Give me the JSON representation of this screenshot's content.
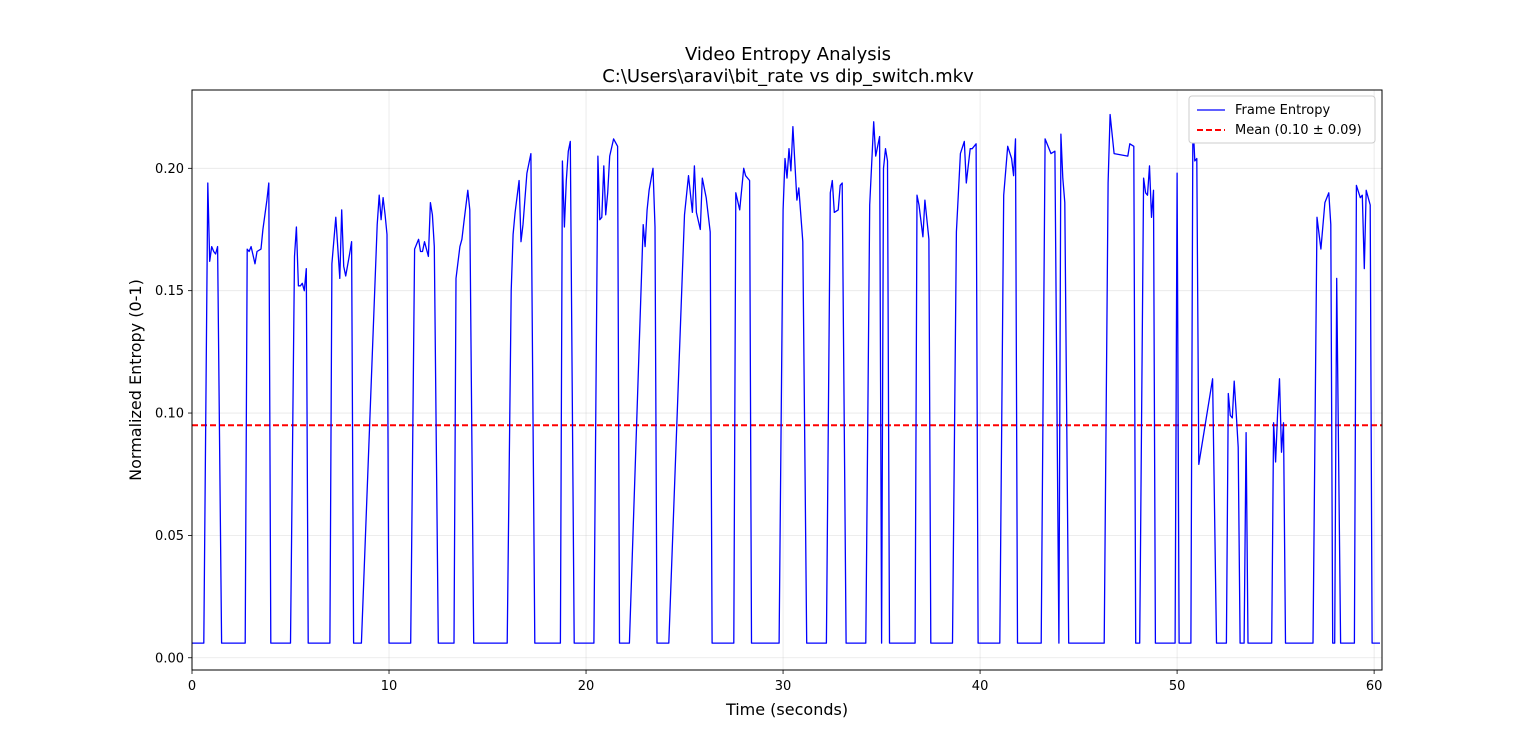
{
  "chart_data": {
    "type": "line",
    "title": "Video Entropy Analysis",
    "subtitle": "C:\\Users\\aravi\\bit_rate vs dip_switch.mkv",
    "xlabel": "Time (seconds)",
    "ylabel": "Normalized Entropy (0-1)",
    "xlim": [
      0,
      60.4
    ],
    "ylim": [
      -0.005,
      0.232
    ],
    "xticks": [
      0,
      10,
      20,
      30,
      40,
      50,
      60
    ],
    "xtick_labels": [
      "0",
      "10",
      "20",
      "30",
      "40",
      "50",
      "60"
    ],
    "yticks": [
      0.0,
      0.05,
      0.1,
      0.15,
      0.2
    ],
    "ytick_labels": [
      "0.00",
      "0.05",
      "0.10",
      "0.15",
      "0.20"
    ],
    "grid": true,
    "legend_position": "top-right",
    "mean_line": {
      "name": "Mean (0.10 ± 0.09)",
      "value": 0.095,
      "color": "#ff0000",
      "style": "dashed"
    },
    "series": [
      {
        "name": "Frame Entropy",
        "color": "#0000ff",
        "x": [
          0,
          0.6,
          0.8,
          0.9,
          1.0,
          1.1,
          1.2,
          1.3,
          1.5,
          1.6,
          2.7,
          2.8,
          2.9,
          3.0,
          3.2,
          3.3,
          3.5,
          3.6,
          3.8,
          3.9,
          4.0,
          4.1,
          5.0,
          5.2,
          5.3,
          5.4,
          5.5,
          5.6,
          5.7,
          5.8,
          5.9,
          6.0,
          6.2,
          7.0,
          7.1,
          7.3,
          7.5,
          7.6,
          7.7,
          7.8,
          8.0,
          8.1,
          8.2,
          8.3,
          8.5,
          8.6,
          9.4,
          9.5,
          9.6,
          9.7,
          9.8,
          9.9,
          10.0,
          10.2,
          10.3,
          11.1,
          11.3,
          11.5,
          11.6,
          11.7,
          11.8,
          12.0,
          12.1,
          12.2,
          12.3,
          12.5,
          12.6,
          13.1,
          13.3,
          13.4,
          13.6,
          13.7,
          13.8,
          14.0,
          14.1,
          14.3,
          14.4,
          14.6,
          14.8,
          15.0,
          16.0,
          16.2,
          16.3,
          16.4,
          16.6,
          16.7,
          16.8,
          17.0,
          17.2,
          17.4,
          17.5,
          17.6,
          18.6,
          18.7,
          18.8,
          18.9,
          19.0,
          19.1,
          19.2,
          19.4,
          19.5,
          20.4,
          20.6,
          20.7,
          20.8,
          20.9,
          21.0,
          21.1,
          21.2,
          21.4,
          21.6,
          21.7,
          21.8,
          21.9,
          22.1,
          22.2,
          22.9,
          23.0,
          23.1,
          23.2,
          23.4,
          23.5,
          23.6,
          23.8,
          24.0,
          24.2,
          25.0,
          25.2,
          25.4,
          25.5,
          25.6,
          25.8,
          25.9,
          26.1,
          26.3,
          26.4,
          26.6,
          26.8,
          27.5,
          27.6,
          27.8,
          28.0,
          28.1,
          28.3,
          28.4,
          28.6,
          28.8,
          29.0,
          29.8,
          30.0,
          30.1,
          30.2,
          30.3,
          30.4,
          30.5,
          30.7,
          30.8,
          31.0,
          31.2,
          31.4,
          31.5,
          31.6,
          32.2,
          32.4,
          32.5,
          32.6,
          32.8,
          32.9,
          33.0,
          33.2,
          33.3,
          34.0,
          34.2,
          34.4,
          34.6,
          34.7,
          34.9,
          35.0,
          35.1,
          35.2,
          35.3,
          35.4,
          35.6,
          35.7,
          35.8,
          36.6,
          36.7,
          36.8,
          36.9,
          37.1,
          37.2,
          37.4,
          37.5,
          37.6,
          37.7,
          38.5,
          38.6,
          38.8,
          39.0,
          39.2,
          39.3,
          39.5,
          39.6,
          39.8,
          39.9,
          40.1,
          40.2,
          40.9,
          41.0,
          41.2,
          41.4,
          41.6,
          41.7,
          41.8,
          41.9,
          42.5,
          43.1,
          43.3,
          43.6,
          43.8,
          44.0,
          44.1,
          44.2,
          44.3,
          44.5,
          44.6,
          45.4,
          45.6,
          45.8,
          46.0,
          46.3,
          46.5,
          46.6,
          46.8,
          47.5,
          47.6,
          47.8,
          47.9,
          48.0,
          48.1,
          48.3,
          48.4,
          48.5,
          48.6,
          48.7,
          48.8,
          48.9,
          49.9,
          50.0,
          50.1,
          50.2,
          50.3,
          50.5,
          50.6,
          50.7,
          50.8,
          50.9,
          51.0,
          51.1,
          51.8,
          52.0,
          52.1,
          52.2,
          52.4,
          52.5,
          52.6,
          52.7,
          52.8,
          52.9,
          53.0,
          53.1,
          53.2,
          53.3,
          53.4,
          53.5,
          53.6,
          54.2,
          54.4,
          54.5,
          54.6,
          54.7,
          54.8,
          54.9,
          55.0,
          55.1,
          55.2,
          55.3,
          55.4,
          55.5,
          55.6,
          56.5,
          56.7,
          56.8,
          56.9,
          57.1,
          57.3,
          57.5,
          57.7,
          57.8,
          57.9,
          58.0,
          58.1,
          58.3,
          58.6,
          58.9,
          59.0,
          59.1,
          59.3,
          59.4,
          59.5,
          59.6,
          59.8,
          59.9,
          60.0,
          60.3
        ],
        "y": [
          0.006,
          0.006,
          0.194,
          0.162,
          0.168,
          0.166,
          0.165,
          0.168,
          0.006,
          0.006,
          0.006,
          0.167,
          0.166,
          0.168,
          0.161,
          0.166,
          0.167,
          0.175,
          0.187,
          0.194,
          0.006,
          0.006,
          0.006,
          0.164,
          0.176,
          0.152,
          0.152,
          0.153,
          0.15,
          0.159,
          0.006,
          0.006,
          0.006,
          0.006,
          0.161,
          0.18,
          0.155,
          0.183,
          0.16,
          0.156,
          0.165,
          0.17,
          0.006,
          0.006,
          0.006,
          0.006,
          0.177,
          0.189,
          0.179,
          0.188,
          0.181,
          0.173,
          0.006,
          0.006,
          0.006,
          0.006,
          0.167,
          0.171,
          0.166,
          0.166,
          0.17,
          0.164,
          0.186,
          0.181,
          0.168,
          0.006,
          0.006,
          0.006,
          0.006,
          0.155,
          0.168,
          0.171,
          0.178,
          0.191,
          0.183,
          0.006,
          0.006,
          0.006,
          0.006,
          0.006,
          0.006,
          0.15,
          0.173,
          0.182,
          0.195,
          0.17,
          0.177,
          0.198,
          0.206,
          0.006,
          0.006,
          0.006,
          0.006,
          0.006,
          0.203,
          0.176,
          0.195,
          0.207,
          0.211,
          0.006,
          0.006,
          0.006,
          0.205,
          0.179,
          0.18,
          0.201,
          0.181,
          0.19,
          0.205,
          0.212,
          0.209,
          0.006,
          0.006,
          0.006,
          0.006,
          0.006,
          0.177,
          0.168,
          0.183,
          0.191,
          0.2,
          0.176,
          0.006,
          0.006,
          0.006,
          0.006,
          0.181,
          0.197,
          0.182,
          0.201,
          0.182,
          0.175,
          0.196,
          0.188,
          0.174,
          0.006,
          0.006,
          0.006,
          0.006,
          0.19,
          0.183,
          0.2,
          0.197,
          0.195,
          0.006,
          0.006,
          0.006,
          0.006,
          0.006,
          0.183,
          0.204,
          0.196,
          0.208,
          0.199,
          0.217,
          0.187,
          0.192,
          0.17,
          0.006,
          0.006,
          0.006,
          0.006,
          0.006,
          0.19,
          0.195,
          0.182,
          0.183,
          0.193,
          0.194,
          0.006,
          0.006,
          0.006,
          0.006,
          0.185,
          0.219,
          0.205,
          0.213,
          0.006,
          0.2,
          0.208,
          0.203,
          0.006,
          0.006,
          0.006,
          0.006,
          0.006,
          0.006,
          0.189,
          0.185,
          0.172,
          0.187,
          0.171,
          0.006,
          0.006,
          0.006,
          0.006,
          0.006,
          0.174,
          0.206,
          0.211,
          0.194,
          0.208,
          0.208,
          0.21,
          0.006,
          0.006,
          0.006,
          0.006,
          0.006,
          0.189,
          0.209,
          0.204,
          0.197,
          0.212,
          0.006,
          0.006,
          0.006,
          0.212,
          0.206,
          0.207,
          0.006,
          0.214,
          0.196,
          0.186,
          0.006,
          0.006,
          0.006,
          0.006,
          0.006,
          0.006,
          0.006,
          0.194,
          0.222,
          0.206,
          0.205,
          0.21,
          0.209,
          0.006,
          0.006,
          0.006,
          0.196,
          0.19,
          0.189,
          0.201,
          0.18,
          0.191,
          0.006,
          0.006,
          0.198,
          0.006,
          0.006,
          0.006,
          0.006,
          0.006,
          0.006,
          0.22,
          0.203,
          0.204,
          0.079,
          0.114,
          0.006,
          0.006,
          0.006,
          0.006,
          0.006,
          0.108,
          0.099,
          0.098,
          0.113,
          0.1,
          0.086,
          0.006,
          0.006,
          0.006,
          0.092,
          0.006,
          0.006,
          0.006,
          0.006,
          0.006,
          0.006,
          0.006,
          0.096,
          0.08,
          0.1,
          0.114,
          0.084,
          0.096,
          0.006,
          0.006,
          0.006,
          0.006,
          0.006,
          0.006,
          0.18,
          0.167,
          0.186,
          0.19,
          0.177,
          0.006,
          0.006,
          0.155,
          0.006,
          0.006,
          0.006,
          0.006,
          0.193,
          0.188,
          0.189,
          0.159,
          0.191,
          0.185,
          0.006,
          0.006,
          0.006
        ]
      }
    ]
  }
}
